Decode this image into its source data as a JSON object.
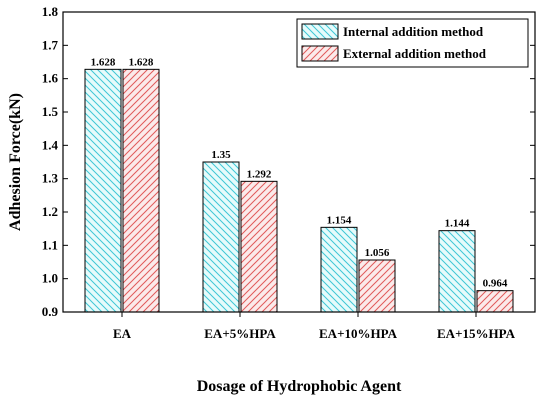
{
  "chart_data": {
    "type": "bar",
    "xlabel": "Dosage of Hydrophobic Agent",
    "ylabel": "Adhesion Force(kN)",
    "ylim": [
      0.9,
      1.8
    ],
    "yticks": [
      "0.9",
      "1.0",
      "1.1",
      "1.2",
      "1.3",
      "1.4",
      "1.5",
      "1.6",
      "1.7",
      "1.8"
    ],
    "categories": [
      "EA",
      "EA+5%HPA",
      "EA+10%HPA",
      "EA+15%HPA"
    ],
    "legend_position": "top-right",
    "grid": false,
    "series": [
      {
        "name": "Internal addition method",
        "values": [
          1.628,
          1.35,
          1.154,
          1.144
        ],
        "labels": [
          "1.628",
          "1.35",
          "1.154",
          "1.144"
        ],
        "fill": "#e6fbfb",
        "hatch": "#3fc7d6"
      },
      {
        "name": "External addition method",
        "values": [
          1.628,
          1.292,
          1.056,
          0.964
        ],
        "labels": [
          "1.628",
          "1.292",
          "1.056",
          "0.964"
        ],
        "fill": "#fbeaea",
        "hatch": "#e05a5a"
      }
    ]
  }
}
